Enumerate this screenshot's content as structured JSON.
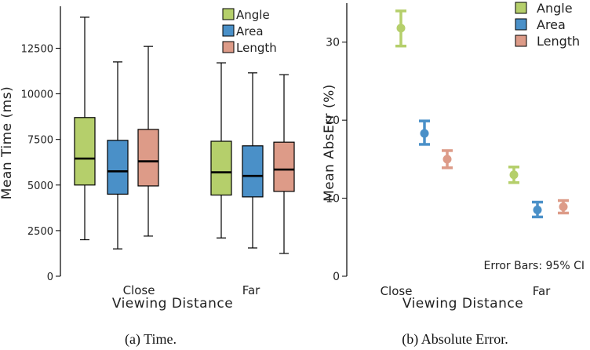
{
  "chart_data": [
    {
      "type": "boxplot",
      "caption": "(a)  Time.",
      "xlabel": "Viewing Distance",
      "ylabel": "Mean Time (ms)",
      "ylim": [
        0,
        14800
      ],
      "yticks": [
        0,
        2500,
        5000,
        7500,
        10000,
        12500
      ],
      "ytick_labels": [
        "0",
        "2500",
        "5000",
        "7500",
        "10000",
        "12500"
      ],
      "categories": [
        "Close",
        "Far"
      ],
      "legend": {
        "placement": "top-right",
        "entries": [
          "Angle",
          "Area",
          "Length"
        ]
      },
      "series": [
        {
          "name": "Angle",
          "color": "#b5cf6b",
          "boxes": [
            {
              "min": 2000,
              "q1": 5000,
              "median": 6450,
              "q3": 8700,
              "max": 14200
            },
            {
              "min": 2100,
              "q1": 4450,
              "median": 5700,
              "q3": 7400,
              "max": 11700
            }
          ]
        },
        {
          "name": "Area",
          "color": "#4a90c8",
          "boxes": [
            {
              "min": 1500,
              "q1": 4500,
              "median": 5750,
              "q3": 7450,
              "max": 11750
            },
            {
              "min": 1550,
              "q1": 4350,
              "median": 5500,
              "q3": 7150,
              "max": 11150
            }
          ]
        },
        {
          "name": "Length",
          "color": "#dd9b88",
          "boxes": [
            {
              "min": 2200,
              "q1": 4950,
              "median": 6300,
              "q3": 8050,
              "max": 12600
            },
            {
              "min": 1250,
              "q1": 4650,
              "median": 5850,
              "q3": 7350,
              "max": 11050
            }
          ]
        }
      ]
    },
    {
      "type": "errorbar",
      "caption": "(b)  Absolute Error.",
      "xlabel": "Viewing Distance",
      "ylabel": "Mean AbsErr (%)",
      "ylim": [
        0,
        35
      ],
      "yticks": [
        0,
        10,
        20,
        30
      ],
      "ytick_labels": [
        "0",
        "10",
        "20",
        "30"
      ],
      "categories": [
        "Close",
        "Far"
      ],
      "annotation": "Error Bars: 95% CI",
      "legend": {
        "placement": "top-right",
        "entries": [
          "Angle",
          "Area",
          "Length"
        ]
      },
      "series": [
        {
          "name": "Angle",
          "color": "#b5cf6b",
          "points": [
            {
              "mean": 31.8,
              "low": 29.5,
              "high": 34.0
            },
            {
              "mean": 13.0,
              "low": 12.0,
              "high": 14.0
            }
          ]
        },
        {
          "name": "Area",
          "color": "#4a90c8",
          "points": [
            {
              "mean": 18.3,
              "low": 16.9,
              "high": 19.9
            },
            {
              "mean": 8.5,
              "low": 7.6,
              "high": 9.5
            }
          ]
        },
        {
          "name": "Length",
          "color": "#dd9b88",
          "points": [
            {
              "mean": 15.0,
              "low": 13.9,
              "high": 16.1
            },
            {
              "mean": 8.9,
              "low": 8.1,
              "high": 9.7
            }
          ]
        }
      ]
    }
  ]
}
